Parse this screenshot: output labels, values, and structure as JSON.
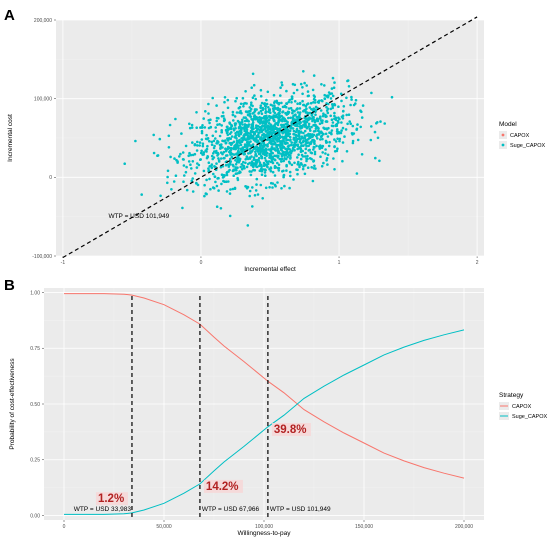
{
  "chart_data": [
    {
      "panel": "A",
      "type": "scatter",
      "xlabel": "Incremental effect",
      "ylabel": "Incremental cost",
      "xlim": [
        -1.05,
        2.05
      ],
      "ylim": [
        -100000,
        200000
      ],
      "x_ticks": [
        -1,
        0,
        1,
        2
      ],
      "y_ticks": [
        -100000,
        0,
        100000,
        200000
      ],
      "x_tick_labels": [
        "-1",
        "0",
        "1",
        "2"
      ],
      "y_tick_labels": [
        "-100,000",
        "0",
        "100,000",
        "200,000"
      ],
      "legend_title": "Model",
      "legend_position": "right",
      "series": [
        {
          "name": "CAPOX",
          "color": "#f8766d",
          "points": []
        },
        {
          "name": "Suge_CAPOX",
          "color": "#00bfc4",
          "cloud": {
            "center": [
              0.5,
              50000
            ],
            "sd": [
              0.28,
              28000
            ],
            "correlation": 0.35,
            "n": 1800
          }
        }
      ],
      "reference_line": {
        "slope": 101949,
        "intercept": 0,
        "style": "dashed"
      },
      "annotations": [
        {
          "text": "WTP = USD 101,949",
          "x": -0.45,
          "y": -52000
        }
      ],
      "grid": true
    },
    {
      "panel": "B",
      "type": "line",
      "xlabel": "Willingness-to-pay",
      "ylabel": "Probability of cost-effectiveness",
      "xlim": [
        -10000,
        210000
      ],
      "ylim": [
        -0.02,
        1.02
      ],
      "x_ticks": [
        0,
        50000,
        100000,
        150000,
        200000
      ],
      "y_ticks": [
        0,
        0.25,
        0.5,
        0.75,
        1
      ],
      "x_tick_labels": [
        "0",
        "50,000",
        "100,000",
        "150,000",
        "200,000"
      ],
      "y_tick_labels": [
        "0.00",
        "0.25",
        "0.50",
        "0.75",
        "1.00"
      ],
      "legend_title": "Strategy",
      "legend_position": "right",
      "x": [
        0,
        10000,
        20000,
        30000,
        33983,
        40000,
        50000,
        60000,
        67966,
        75000,
        80000,
        90000,
        101949,
        110000,
        120000,
        130000,
        140000,
        150000,
        160000,
        170000,
        180000,
        190000,
        200000
      ],
      "series": [
        {
          "name": "CAPOX",
          "color": "#f8766d",
          "values": [
            0.995,
            0.995,
            0.995,
            0.992,
            0.988,
            0.975,
            0.945,
            0.9,
            0.858,
            0.8,
            0.76,
            0.69,
            0.602,
            0.55,
            0.475,
            0.42,
            0.37,
            0.325,
            0.28,
            0.245,
            0.215,
            0.19,
            0.168
          ]
        },
        {
          "name": "Suge_CAPOX",
          "color": "#00bfc4",
          "values": [
            0.005,
            0.005,
            0.005,
            0.008,
            0.012,
            0.025,
            0.055,
            0.1,
            0.142,
            0.2,
            0.24,
            0.31,
            0.398,
            0.45,
            0.525,
            0.58,
            0.63,
            0.675,
            0.72,
            0.755,
            0.785,
            0.81,
            0.832
          ]
        }
      ],
      "vlines": [
        {
          "x": 33983,
          "label": "WTP = USD 33,983",
          "pct": "1.2%"
        },
        {
          "x": 67966,
          "label": "WTP = USD 67,966",
          "pct": "14.2%"
        },
        {
          "x": 101949,
          "label": "WTP = USD 101,949",
          "pct": "39.8%"
        }
      ],
      "grid": true
    }
  ]
}
